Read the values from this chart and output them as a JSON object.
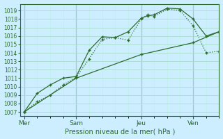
{
  "xlabel": "Pression niveau de la mer( hPa )",
  "bg_color": "#cceeff",
  "grid_major_color": "#aaddcc",
  "grid_minor_color": "#bbeedd",
  "line_color": "#2d6b2d",
  "ylim": [
    1006.5,
    1019.8
  ],
  "yticks": [
    1007,
    1008,
    1009,
    1010,
    1011,
    1012,
    1013,
    1014,
    1015,
    1016,
    1017,
    1018,
    1019
  ],
  "xtick_labels": [
    "Mer",
    "Sam",
    "Jeu",
    "Ven"
  ],
  "xtick_positions": [
    0,
    4,
    9,
    13
  ],
  "xlim": [
    -0.3,
    15
  ],
  "vline_positions": [
    0,
    4,
    9,
    13
  ],
  "line1_x": [
    0,
    1,
    2,
    3,
    4,
    5,
    6,
    7,
    8,
    9,
    9.5,
    10,
    11,
    12,
    13,
    14,
    15
  ],
  "line1_y": [
    1007.0,
    1008.2,
    1009.0,
    1010.2,
    1011.1,
    1013.3,
    1015.6,
    1015.8,
    1015.5,
    1018.0,
    1018.5,
    1018.3,
    1019.2,
    1019.0,
    1017.2,
    1014.0,
    1014.2
  ],
  "line2_x": [
    0,
    1,
    2,
    3,
    4,
    5,
    6,
    7,
    8,
    9,
    9.5,
    10,
    11,
    12,
    13,
    14,
    15
  ],
  "line2_y": [
    1007.0,
    1009.2,
    1010.2,
    1011.0,
    1011.2,
    1014.3,
    1015.9,
    1015.8,
    1016.5,
    1018.1,
    1018.4,
    1018.5,
    1019.3,
    1019.2,
    1018.0,
    1016.0,
    1016.5
  ],
  "line3_x": [
    0,
    4,
    9,
    13,
    15
  ],
  "line3_y": [
    1007.0,
    1011.0,
    1013.8,
    1015.2,
    1016.5
  ]
}
